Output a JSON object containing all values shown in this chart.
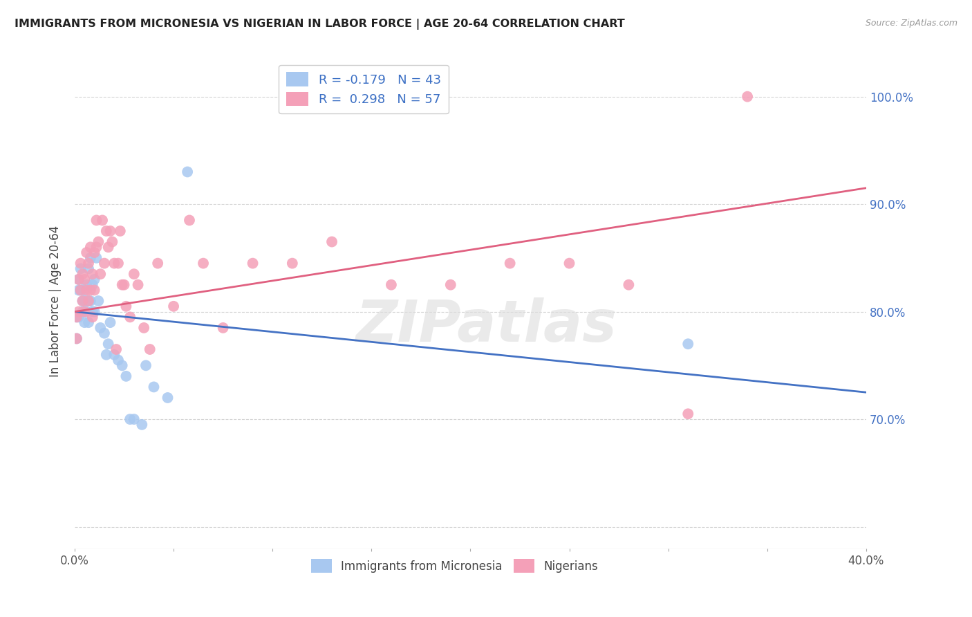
{
  "title": "IMMIGRANTS FROM MICRONESIA VS NIGERIAN IN LABOR FORCE | AGE 20-64 CORRELATION CHART",
  "source": "Source: ZipAtlas.com",
  "ylabel": "In Labor Force | Age 20-64",
  "xlim": [
    0.0,
    0.4
  ],
  "ylim": [
    0.58,
    1.04
  ],
  "legend_entry1": "R = -0.179   N = 43",
  "legend_entry2": "R =  0.298   N = 57",
  "legend_label1": "Immigrants from Micronesia",
  "legend_label2": "Nigerians",
  "micronesia_color": "#A8C8F0",
  "nigerian_color": "#F4A0B8",
  "micronesia_line_color": "#4472C4",
  "nigerian_line_color": "#E06080",
  "watermark_text": "ZIPatlas",
  "background_color": "#FFFFFF",
  "grid_color": "#D0D0D0",
  "micro_x": [
    0.001,
    0.001,
    0.002,
    0.002,
    0.002,
    0.003,
    0.003,
    0.004,
    0.004,
    0.005,
    0.005,
    0.005,
    0.006,
    0.006,
    0.006,
    0.007,
    0.007,
    0.007,
    0.008,
    0.008,
    0.009,
    0.009,
    0.01,
    0.01,
    0.011,
    0.012,
    0.013,
    0.015,
    0.016,
    0.017,
    0.018,
    0.02,
    0.022,
    0.024,
    0.026,
    0.028,
    0.03,
    0.034,
    0.036,
    0.04,
    0.047,
    0.057,
    0.31
  ],
  "micro_y": [
    0.795,
    0.775,
    0.83,
    0.82,
    0.795,
    0.84,
    0.82,
    0.81,
    0.8,
    0.82,
    0.81,
    0.79,
    0.825,
    0.81,
    0.8,
    0.84,
    0.81,
    0.79,
    0.85,
    0.81,
    0.825,
    0.8,
    0.83,
    0.8,
    0.85,
    0.81,
    0.785,
    0.78,
    0.76,
    0.77,
    0.79,
    0.76,
    0.755,
    0.75,
    0.74,
    0.7,
    0.7,
    0.695,
    0.75,
    0.73,
    0.72,
    0.93,
    0.77
  ],
  "nig_x": [
    0.001,
    0.001,
    0.002,
    0.002,
    0.003,
    0.003,
    0.004,
    0.004,
    0.005,
    0.005,
    0.006,
    0.006,
    0.007,
    0.007,
    0.008,
    0.008,
    0.009,
    0.009,
    0.01,
    0.01,
    0.011,
    0.011,
    0.012,
    0.013,
    0.014,
    0.015,
    0.016,
    0.017,
    0.018,
    0.019,
    0.02,
    0.021,
    0.022,
    0.023,
    0.024,
    0.025,
    0.026,
    0.028,
    0.03,
    0.032,
    0.035,
    0.038,
    0.042,
    0.05,
    0.058,
    0.065,
    0.075,
    0.09,
    0.11,
    0.13,
    0.16,
    0.19,
    0.22,
    0.25,
    0.28,
    0.31,
    0.34
  ],
  "nig_y": [
    0.795,
    0.775,
    0.83,
    0.8,
    0.845,
    0.82,
    0.835,
    0.81,
    0.83,
    0.8,
    0.855,
    0.82,
    0.845,
    0.81,
    0.86,
    0.82,
    0.835,
    0.795,
    0.855,
    0.82,
    0.885,
    0.86,
    0.865,
    0.835,
    0.885,
    0.845,
    0.875,
    0.86,
    0.875,
    0.865,
    0.845,
    0.765,
    0.845,
    0.875,
    0.825,
    0.825,
    0.805,
    0.795,
    0.835,
    0.825,
    0.785,
    0.765,
    0.845,
    0.805,
    0.885,
    0.845,
    0.785,
    0.845,
    0.845,
    0.865,
    0.825,
    0.825,
    0.845,
    0.845,
    0.825,
    0.705,
    1.0
  ],
  "micro_line_x0": 0.0,
  "micro_line_x1": 0.4,
  "micro_line_y0": 0.8,
  "micro_line_y1": 0.725,
  "nig_line_x0": 0.0,
  "nig_line_x1": 0.4,
  "nig_line_y0": 0.8,
  "nig_line_y1": 0.915
}
